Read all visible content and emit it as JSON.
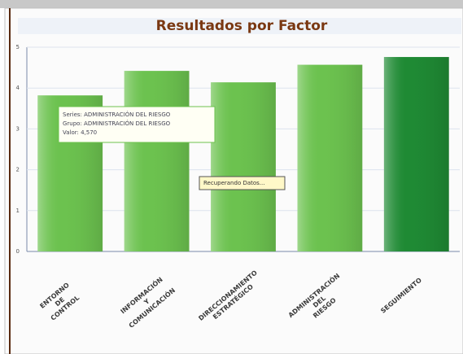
{
  "chart_data": {
    "type": "bar",
    "title": "Resultados por Factor",
    "categories": [
      "ENTORNO\nDE\nCONTROL",
      "INFORMACIÓN\nY\nCOMUNICACIÓN",
      "DIRECCIONAMIENTO\nESTRATÉGICO",
      "ADMINISTRACIÓN\nDEL\nRIESGO",
      "SEGUIMIENTO"
    ],
    "values": [
      3.82,
      4.42,
      4.14,
      4.57,
      4.76
    ],
    "colors": [
      "#6cc24f",
      "#6cc24f",
      "#6cc24f",
      "#6cc24f",
      "#1f8a34"
    ],
    "ylim": [
      0,
      5
    ],
    "yticks": [
      0,
      1,
      2,
      3,
      4,
      5
    ],
    "grid": true,
    "tooltip": [
      "Series: ADMINISTRACIÓN DEL RIESGO",
      "Grupo: ADMINISTRACIÓN DEL RIESGO",
      "Valor: 4,570"
    ],
    "status": "Recuperando Datos..."
  }
}
